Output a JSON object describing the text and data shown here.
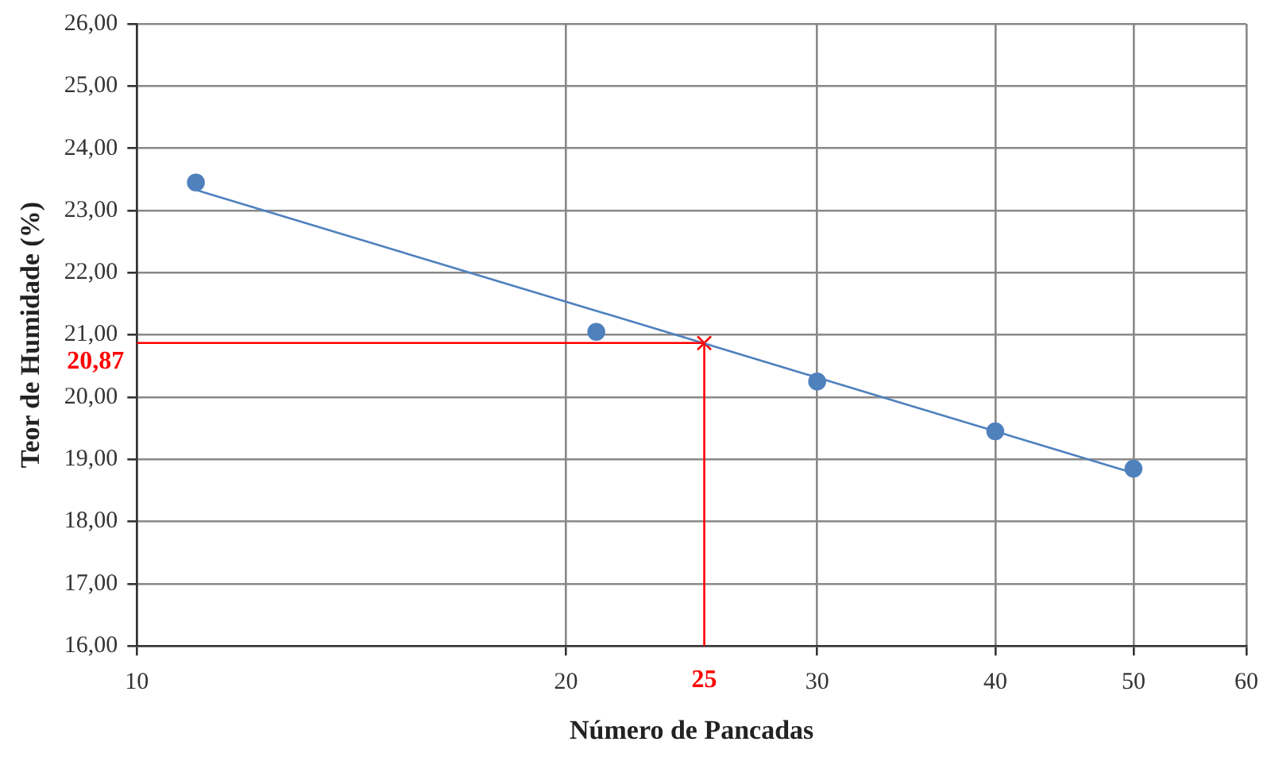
{
  "chart_data": {
    "type": "scatter",
    "xlabel": "Número de Pancadas",
    "ylabel": "Teor de Humidade (%)",
    "log": "x",
    "xlim": [
      10,
      60
    ],
    "xticks": [
      10,
      20,
      30,
      40,
      50,
      60
    ],
    "ylim": [
      16,
      26
    ],
    "yticks": [
      {
        "value": 16,
        "label": "16,00"
      },
      {
        "value": 17,
        "label": "17,00"
      },
      {
        "value": 18,
        "label": "18,00"
      },
      {
        "value": 19,
        "label": "19,00"
      },
      {
        "value": 20,
        "label": "20,00"
      },
      {
        "value": 21,
        "label": "21,00"
      },
      {
        "value": 22,
        "label": "22,00"
      },
      {
        "value": 23,
        "label": "23,00"
      },
      {
        "value": 24,
        "label": "24,00"
      },
      {
        "value": 25,
        "label": "25,00"
      },
      {
        "value": 26,
        "label": "26,00"
      }
    ],
    "grid": true,
    "legend": false,
    "series": [
      {
        "color": "#4f81bd",
        "marker": "circle",
        "x": [
          11,
          21,
          30,
          40,
          50
        ],
        "values": [
          23.45,
          21.05,
          20.25,
          19.45,
          18.85
        ]
      },
      {
        "type": "line",
        "color": "#4f81bd",
        "marker": "none",
        "line_style": "solid",
        "x": [
          11,
          50
        ],
        "values": [
          23.33,
          18.78
        ]
      },
      {
        "color": "#ff0000",
        "marker": "cross",
        "x": [
          25
        ],
        "values": [
          20.87
        ]
      }
    ],
    "ref_lines": [
      {
        "axis": "x",
        "value": 25,
        "label": "25",
        "color": "#ff0000"
      },
      {
        "axis": "y",
        "value": 20.87,
        "label": "20,87",
        "color": "#ff0000"
      }
    ]
  }
}
